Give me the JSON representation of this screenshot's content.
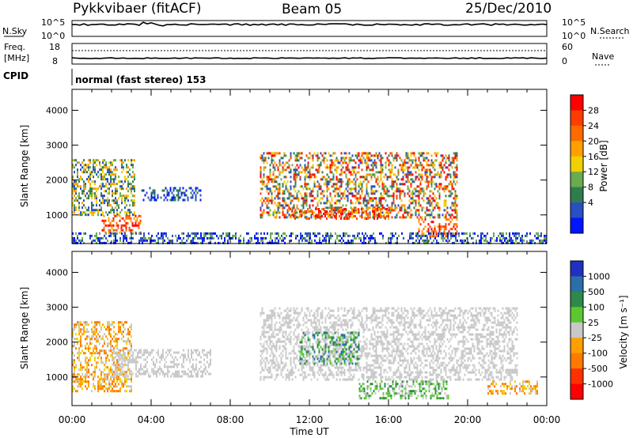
{
  "header": {
    "title": "Pykkvibaer (fitACF)",
    "beam": "Beam 05",
    "date": "25/Dec/2010"
  },
  "strips": {
    "nsky_label": "N.Sky",
    "nsearch_label": "N.Search",
    "nsky_ticks": [
      "10^5",
      "10^0"
    ],
    "nsearch_ticks": [
      "10^5",
      "10^0"
    ],
    "freq_label_1": "Freq.",
    "freq_label_2": "[MHz]",
    "freq_ticks": [
      "18",
      "8"
    ],
    "nave_label": "Nave",
    "nave_ticks": [
      "60",
      "0"
    ],
    "cpid_label": "CPID",
    "cpid_text": "normal (fast stereo) 153"
  },
  "colorbars": {
    "power_label": "Power [dB]",
    "power_ticks": [
      "28",
      "24",
      "20",
      "16",
      "12",
      "8",
      "4"
    ],
    "power_colors": [
      "#ff0000",
      "#ff3c00",
      "#ff6a00",
      "#ffa000",
      "#f0d000",
      "#6aaa50",
      "#2e7d4f",
      "#2a4fc0",
      "#0015ff"
    ],
    "velocity_label": "Velocity [m s⁻¹]",
    "velocity_ticks": [
      "1000",
      "500",
      "100",
      "25",
      "-25",
      "-100",
      "-500",
      "-1000"
    ],
    "velocity_colors": [
      "#2030c0",
      "#2a6fa8",
      "#2e8a4a",
      "#5cc830",
      "#c8c8c8",
      "#ffa000",
      "#ff7a00",
      "#ff3000",
      "#ff0000"
    ]
  },
  "chart_data": [
    {
      "type": "heatmap",
      "panel": "power",
      "xlabel": "Time UT",
      "ylabel": "Slant Range [km]",
      "x_ticks": [
        "00:00",
        "04:00",
        "08:00",
        "12:00",
        "16:00",
        "20:00",
        "00:00"
      ],
      "y_ticks": [
        "1000",
        "2000",
        "3000",
        "4000"
      ],
      "ylim": [
        180,
        4600
      ],
      "xlim_hours": [
        0,
        24
      ],
      "regions": [
        {
          "t": [
            0,
            3.2
          ],
          "r": [
            1000,
            2600
          ],
          "level": "mixed-green"
        },
        {
          "t": [
            1.5,
            3.5
          ],
          "r": [
            500,
            1000
          ],
          "level": "red"
        },
        {
          "t": [
            3.5,
            6.5
          ],
          "r": [
            1400,
            1800
          ],
          "level": "blue"
        },
        {
          "t": [
            9.5,
            19.5
          ],
          "r": [
            900,
            2800
          ],
          "level": "mixed-red"
        },
        {
          "t": [
            11,
            16
          ],
          "r": [
            900,
            1200
          ],
          "level": "red"
        },
        {
          "t": [
            17.5,
            19.5
          ],
          "r": [
            400,
            900
          ],
          "level": "red"
        },
        {
          "t": [
            0,
            24
          ],
          "r": [
            180,
            500
          ],
          "level": "blue-speckle"
        }
      ]
    },
    {
      "type": "heatmap",
      "panel": "velocity",
      "xlabel": "Time UT",
      "ylabel": "Slant Range [km]",
      "x_ticks": [
        "00:00",
        "04:00",
        "08:00",
        "12:00",
        "16:00",
        "20:00",
        "00:00"
      ],
      "y_ticks": [
        "1000",
        "2000",
        "3000",
        "4000"
      ],
      "ylim": [
        180,
        4600
      ],
      "xlim_hours": [
        0,
        24
      ],
      "regions": [
        {
          "t": [
            0,
            3.0
          ],
          "r": [
            600,
            2600
          ],
          "level": "orange"
        },
        {
          "t": [
            2,
            7
          ],
          "r": [
            1000,
            1800
          ],
          "level": "gray"
        },
        {
          "t": [
            9.5,
            22.5
          ],
          "r": [
            900,
            3000
          ],
          "level": "gray"
        },
        {
          "t": [
            11.5,
            14.5
          ],
          "r": [
            1400,
            2300
          ],
          "level": "green"
        },
        {
          "t": [
            14.5,
            19
          ],
          "r": [
            400,
            900
          ],
          "level": "light-green"
        },
        {
          "t": [
            21,
            23.5
          ],
          "r": [
            500,
            900
          ],
          "level": "orange"
        }
      ]
    }
  ]
}
